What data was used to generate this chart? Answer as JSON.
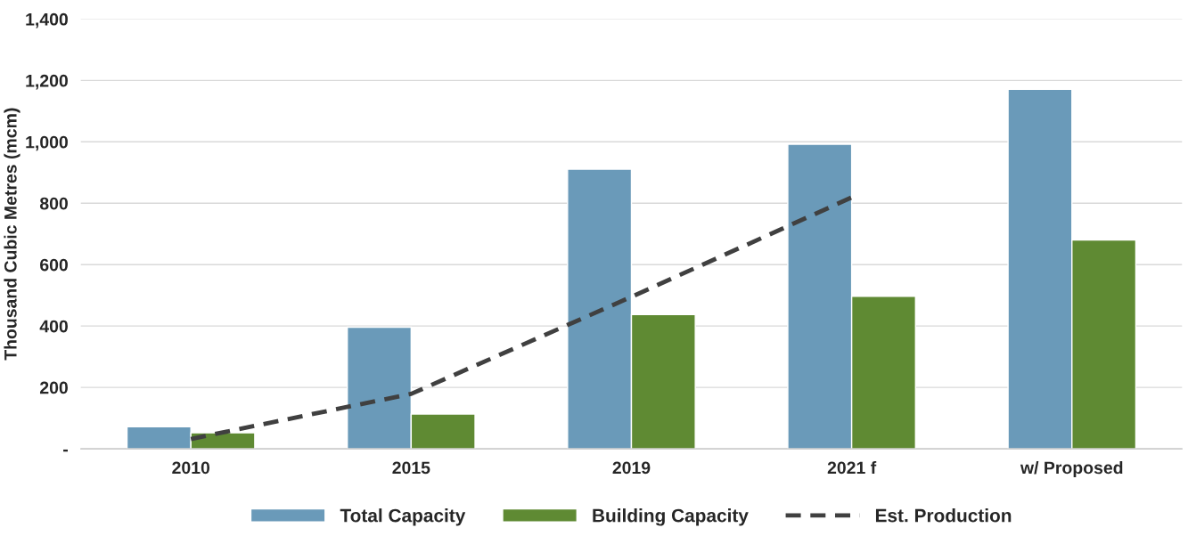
{
  "chart_data": {
    "type": "bar",
    "ylabel": "Thousand Cubic Metres (mcm)",
    "categories": [
      "2010",
      "2015",
      "2019",
      "2021 f",
      "w/ Proposed"
    ],
    "series": [
      {
        "name": "Total Capacity",
        "color": "#6a9ab9",
        "values": [
          72,
          396,
          911,
          992,
          1171
        ]
      },
      {
        "name": "Building Capacity",
        "color": "#5f8a33",
        "values": [
          52,
          113,
          437,
          497,
          680
        ]
      },
      {
        "name": "Est. Production",
        "type": "line",
        "color": "#404040",
        "line_style": "dashed",
        "values": [
          32,
          179,
          495,
          819,
          null
        ]
      }
    ],
    "ylim": [
      0,
      1400
    ],
    "yticks": [
      {
        "value": 0,
        "label": "-"
      },
      200,
      400,
      600,
      800,
      {
        "value": 1000,
        "label": "1,000"
      },
      {
        "value": 1200,
        "label": "1,200"
      },
      {
        "value": 1400,
        "label": "1,400"
      }
    ],
    "grid": "y",
    "legend": "bottom"
  }
}
